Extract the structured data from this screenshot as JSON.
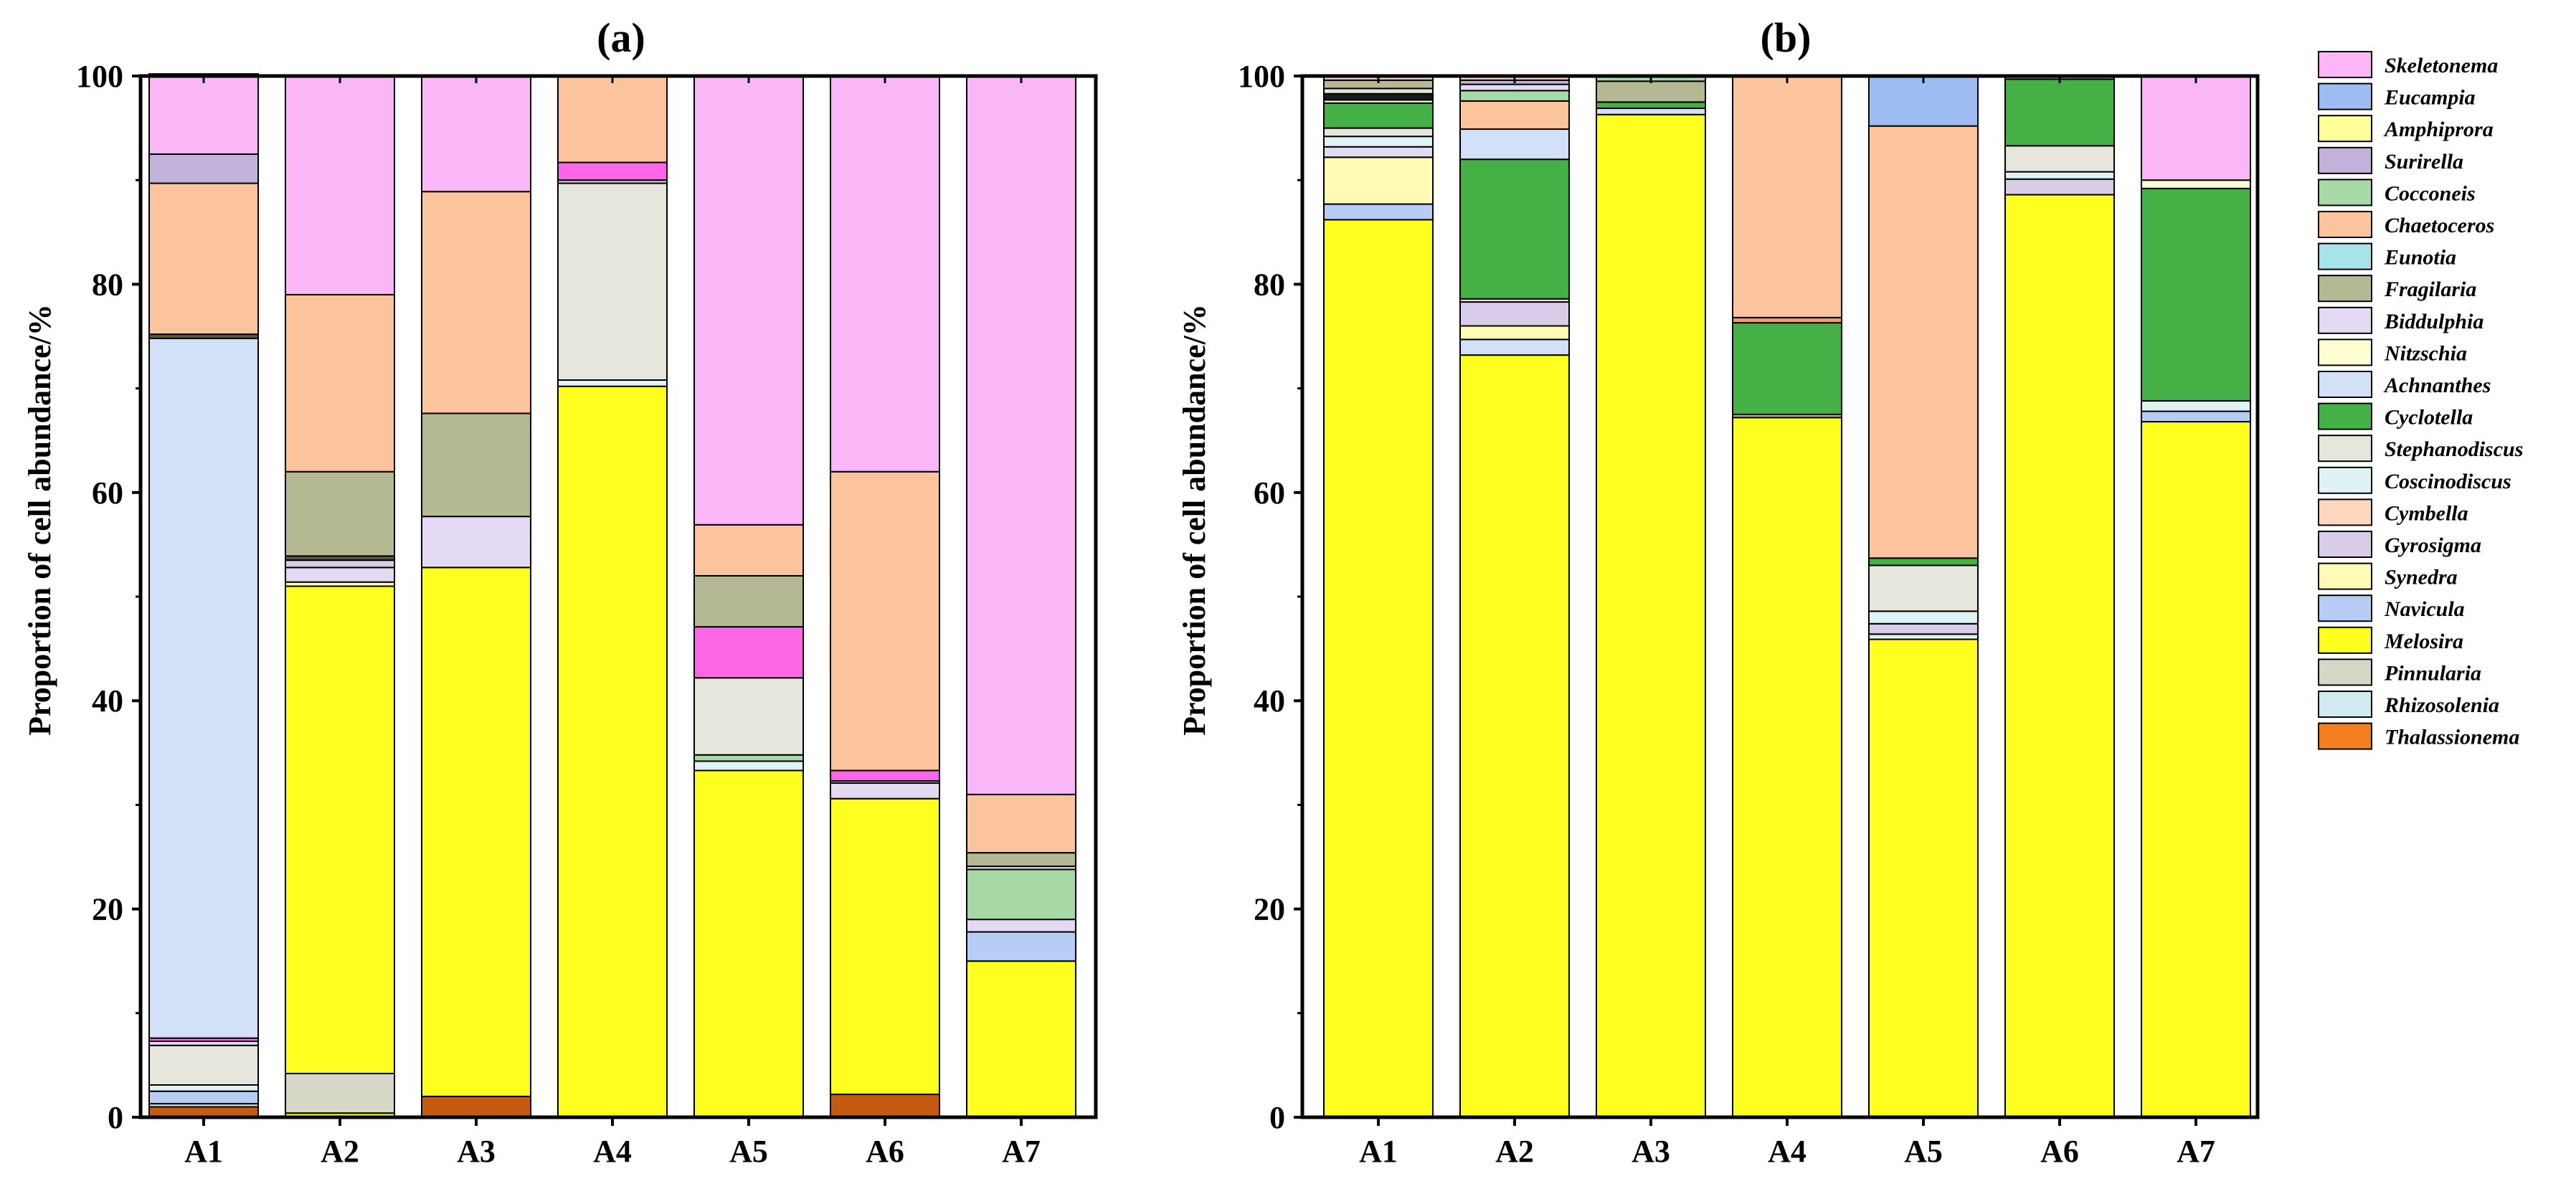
{
  "species": [
    {
      "name": "Skeletonema",
      "color": "#FBB6F8"
    },
    {
      "name": "Eucampia",
      "color": "#9DBDF2"
    },
    {
      "name": "Amphiprora",
      "color": "#FFFF99"
    },
    {
      "name": "Surirella",
      "color": "#C2B1D9"
    },
    {
      "name": "Cocconeis",
      "color": "#A6D9A6"
    },
    {
      "name": "Chaetoceros",
      "color": "#FBC49C"
    },
    {
      "name": "Eunotia",
      "color": "#A9E3EA"
    },
    {
      "name": "Fragilaria",
      "color": "#B4B994"
    },
    {
      "name": "Biddulphia",
      "color": "#E3D9F2"
    },
    {
      "name": "Nitzschia",
      "color": "#FFFDD2"
    },
    {
      "name": "Achnanthes",
      "color": "#D2E1F8"
    },
    {
      "name": "Cyclotella",
      "color": "#45B045"
    },
    {
      "name": "Stephanodiscus",
      "color": "#E6E6DC"
    },
    {
      "name": "Coscinodiscus",
      "color": "#DFF2F4"
    },
    {
      "name": "Cymbella",
      "color": "#FCD6BD"
    },
    {
      "name": "Gyrosigma",
      "color": "#D9CCE8"
    },
    {
      "name": "Synedra",
      "color": "#FFFBB5"
    },
    {
      "name": "Navicula",
      "color": "#B8CDF5"
    },
    {
      "name": "Melosira",
      "color": "#FFFF1F"
    },
    {
      "name": "Pinnularia",
      "color": "#D7D7C7"
    },
    {
      "name": "Rhizosolenia",
      "color": "#CFEAF0"
    },
    {
      "name": "Thalassionema",
      "color": "#F47F1F"
    }
  ],
  "chart_data": [
    {
      "type": "bar",
      "stacked": true,
      "title": "(a)",
      "ylabel": "Proportion of cell abundance/%",
      "ylim": [
        0,
        100
      ],
      "yticks": [
        "0",
        "20",
        "40",
        "60",
        "80",
        "100"
      ],
      "categories": [
        "A1",
        "A2",
        "A3",
        "A4",
        "A5",
        "A6",
        "A7"
      ],
      "stacks": [
        [
          {
            "species": "Thalassionema",
            "value": 1.0,
            "color": "#C55A11"
          },
          {
            "species": "Rhizosolenia",
            "value": 0.3
          },
          {
            "species": "Navicula",
            "value": 1.2
          },
          {
            "species": "Coscinodiscus",
            "value": 0.6
          },
          {
            "species": "Stephanodiscus",
            "value": 3.8
          },
          {
            "species": "Biddulphia",
            "value": 0.4
          },
          {
            "species": "Eucampia",
            "value": 0.3,
            "color": "#FF66E6"
          },
          {
            "species": "Achnanthes",
            "value": 67.2
          },
          {
            "species": "Fragilaria",
            "value": 0.4,
            "color": "#5A5A3C"
          },
          {
            "species": "Chaetoceros",
            "value": 14.5
          },
          {
            "species": "Surirella",
            "value": 2.8
          },
          {
            "species": "Skeletonema",
            "value": 7.7
          }
        ],
        [
          {
            "species": "Melosira",
            "value": 0.4
          },
          {
            "species": "Pinnularia",
            "value": 3.8
          },
          {
            "species": "Melosira",
            "value": 46.8
          },
          {
            "species": "Synedra",
            "value": 0.4
          },
          {
            "species": "Biddulphia",
            "value": 1.4
          },
          {
            "species": "Gyrosigma",
            "value": 0.7
          },
          {
            "species": "Fragilaria",
            "value": 0.4,
            "color": "#5A5A3C"
          },
          {
            "species": "Fragilaria",
            "value": 8.1
          },
          {
            "species": "Chaetoceros",
            "value": 17.0
          },
          {
            "species": "Skeletonema",
            "value": 21.0
          }
        ],
        [
          {
            "species": "Thalassionema",
            "value": 2.0,
            "color": "#C55A11"
          },
          {
            "species": "Melosira",
            "value": 50.8
          },
          {
            "species": "Biddulphia",
            "value": 4.9
          },
          {
            "species": "Fragilaria",
            "value": 9.9
          },
          {
            "species": "Chaetoceros",
            "value": 21.3
          },
          {
            "species": "Skeletonema",
            "value": 11.1
          }
        ],
        [
          {
            "species": "Melosira",
            "value": 70.2
          },
          {
            "species": "Coscinodiscus",
            "value": 0.6
          },
          {
            "species": "Stephanodiscus",
            "value": 18.9
          },
          {
            "species": "Gyrosigma",
            "value": 0.3
          },
          {
            "species": "Eucampia",
            "value": 1.7,
            "color": "#FF66E6"
          },
          {
            "species": "Chaetoceros",
            "value": 8.3
          }
        ],
        [
          {
            "species": "Melosira",
            "value": 33.3
          },
          {
            "species": "Coscinodiscus",
            "value": 0.9
          },
          {
            "species": "Cocconeis",
            "value": 0.6
          },
          {
            "species": "Stephanodiscus",
            "value": 7.4
          },
          {
            "species": "Eucampia",
            "value": 4.9,
            "color": "#FF66E6"
          },
          {
            "species": "Fragilaria",
            "value": 4.9
          },
          {
            "species": "Chaetoceros",
            "value": 4.9
          },
          {
            "species": "Skeletonema",
            "value": 43.1
          }
        ],
        [
          {
            "species": "Thalassionema",
            "value": 2.2,
            "color": "#C55A11"
          },
          {
            "species": "Melosira",
            "value": 28.4
          },
          {
            "species": "Biddulphia",
            "value": 1.5
          },
          {
            "species": "Gyrosigma",
            "value": 0.2
          },
          {
            "species": "Eucampia",
            "value": 1.0,
            "color": "#FF66E6"
          },
          {
            "species": "Chaetoceros",
            "value": 28.7
          },
          {
            "species": "Skeletonema",
            "value": 38.0
          }
        ],
        [
          {
            "species": "Melosira",
            "value": 15.0
          },
          {
            "species": "Navicula",
            "value": 2.8
          },
          {
            "species": "Biddulphia",
            "value": 1.2
          },
          {
            "species": "Cocconeis",
            "value": 4.8
          },
          {
            "species": "Stephanodiscus",
            "value": 0.3
          },
          {
            "species": "Fragilaria",
            "value": 1.3
          },
          {
            "species": "Chaetoceros",
            "value": 5.6
          },
          {
            "species": "Skeletonema",
            "value": 69.0
          }
        ]
      ]
    },
    {
      "type": "bar",
      "stacked": true,
      "title": "(b)",
      "ylabel": "Proportion of cell abundance/%",
      "ylim": [
        0,
        100
      ],
      "yticks": [
        "0",
        "20",
        "40",
        "60",
        "80",
        "100"
      ],
      "categories": [
        "A1",
        "A2",
        "A3",
        "A4",
        "A5",
        "A6",
        "A7"
      ],
      "stacks": [
        [
          {
            "species": "Melosira",
            "value": 86.2
          },
          {
            "species": "Navicula",
            "value": 1.5
          },
          {
            "species": "Synedra",
            "value": 4.5
          },
          {
            "species": "Biddulphia",
            "value": 1.0
          },
          {
            "species": "Coscinodiscus",
            "value": 1.0
          },
          {
            "species": "Stephanodiscus",
            "value": 0.8
          },
          {
            "species": "Cyclotella",
            "value": 2.4
          },
          {
            "species": "Nitzschia",
            "value": 0.3
          },
          {
            "species": "Fragilaria",
            "value": 0.6,
            "color": "#1A1A1A"
          },
          {
            "species": "Stephanodiscus",
            "value": 0.5
          },
          {
            "species": "Fragilaria",
            "value": 0.8
          },
          {
            "species": "Cymbella",
            "value": 0.4
          }
        ],
        [
          {
            "species": "Melosira",
            "value": 73.2
          },
          {
            "species": "Achnanthes",
            "value": 1.5
          },
          {
            "species": "Synedra",
            "value": 1.3
          },
          {
            "species": "Gyrosigma",
            "value": 2.3
          },
          {
            "species": "Stephanodiscus",
            "value": 0.3
          },
          {
            "species": "Cyclotella",
            "value": 13.4
          },
          {
            "species": "Achnanthes",
            "value": 2.9
          },
          {
            "species": "Chaetoceros",
            "value": 2.7
          },
          {
            "species": "Cocconeis",
            "value": 1.0
          },
          {
            "species": "Biddulphia",
            "value": 0.6
          },
          {
            "species": "Surirella",
            "value": 0.4
          },
          {
            "species": "Cymbella",
            "value": 0.4
          }
        ],
        [
          {
            "species": "Melosira",
            "value": 96.3
          },
          {
            "species": "Achnanthes",
            "value": 0.6
          },
          {
            "species": "Cyclotella",
            "value": 0.6
          },
          {
            "species": "Fragilaria",
            "value": 2.0
          },
          {
            "species": "Cocconeis",
            "value": 0.5
          }
        ],
        [
          {
            "species": "Melosira",
            "value": 67.2
          },
          {
            "species": "Fragilaria",
            "value": 0.3
          },
          {
            "species": "Cyclotella",
            "value": 8.8
          },
          {
            "species": "Chaetoceros",
            "value": 0.5,
            "color": "#E6A070"
          },
          {
            "species": "Chaetoceros",
            "value": 23.2
          }
        ],
        [
          {
            "species": "Melosira",
            "value": 45.9
          },
          {
            "species": "Coscinodiscus",
            "value": 0.5
          },
          {
            "species": "Gyrosigma",
            "value": 1.0
          },
          {
            "species": "Coscinodiscus",
            "value": 1.2
          },
          {
            "species": "Stephanodiscus",
            "value": 4.4
          },
          {
            "species": "Cyclotella",
            "value": 0.7
          },
          {
            "species": "Chaetoceros",
            "value": 41.5
          },
          {
            "species": "Eucampia",
            "value": 4.8
          }
        ],
        [
          {
            "species": "Melosira",
            "value": 88.6
          },
          {
            "species": "Gyrosigma",
            "value": 1.5
          },
          {
            "species": "Coscinodiscus",
            "value": 0.7
          },
          {
            "species": "Stephanodiscus",
            "value": 2.5
          },
          {
            "species": "Cyclotella",
            "value": 6.4
          },
          {
            "species": "Fragilaria",
            "value": 0.3
          }
        ],
        [
          {
            "species": "Melosira",
            "value": 66.8
          },
          {
            "species": "Navicula",
            "value": 1.0
          },
          {
            "species": "Coscinodiscus",
            "value": 1.0
          },
          {
            "species": "Cyclotella",
            "value": 20.4
          },
          {
            "species": "Nitzschia",
            "value": 0.8
          },
          {
            "species": "Skeletonema",
            "value": 10.0
          }
        ]
      ]
    }
  ]
}
